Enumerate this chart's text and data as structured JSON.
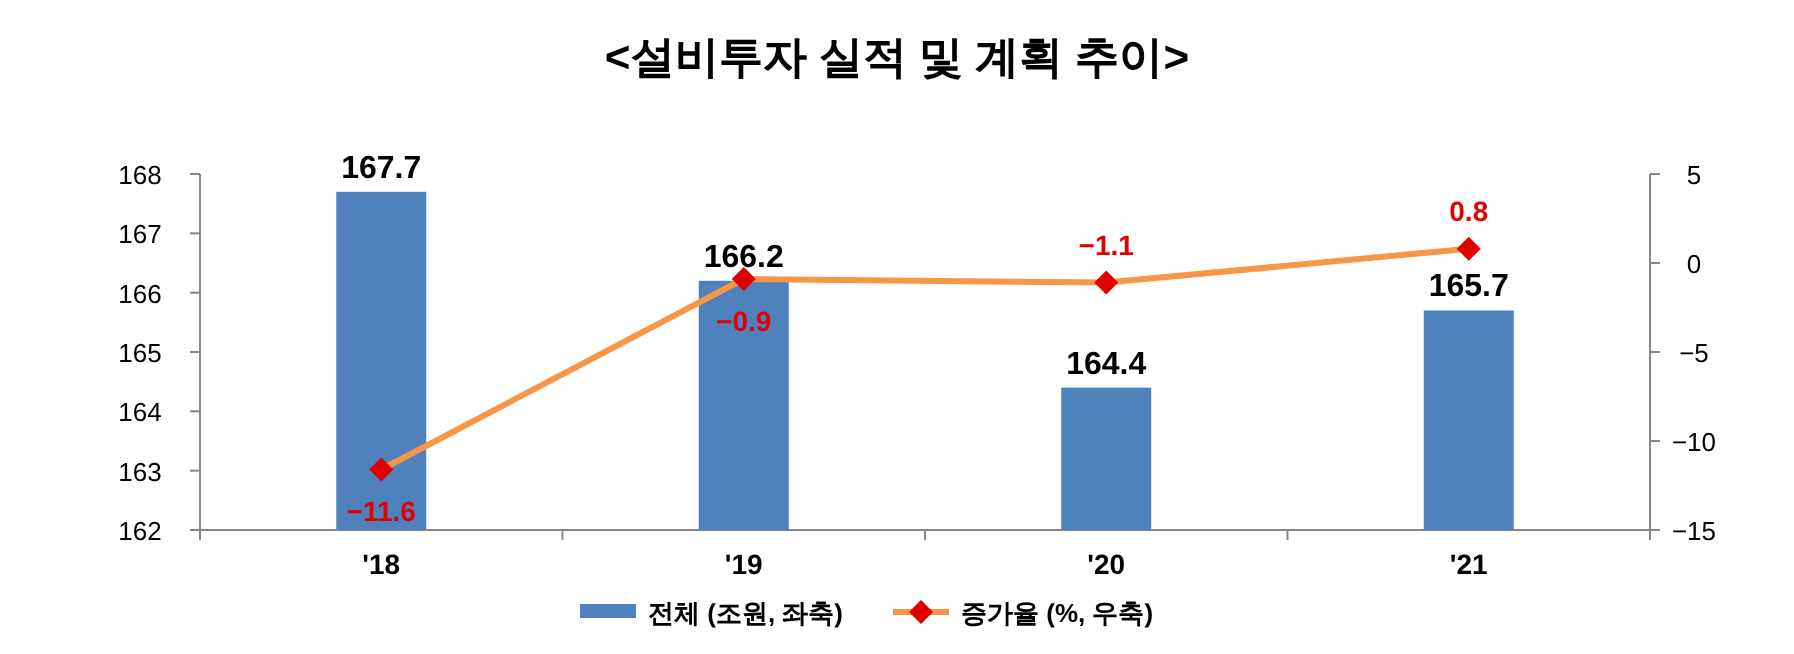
{
  "chart_data": {
    "type": "bar",
    "title": "<설비투자 실적 및 계획 추이>",
    "categories": [
      "'18",
      "'19",
      "'20",
      "'21"
    ],
    "series": [
      {
        "name": "전체 (조원, 좌축)",
        "color": "#4f81bd",
        "values": [
          167.7,
          166.2,
          164.4,
          165.7
        ]
      },
      {
        "name": "증가율 (%, 우축)",
        "type": "line",
        "axis": "y2",
        "color": "#f79646",
        "colors": [
          "#e00000",
          "#e00000",
          "#e00000",
          "#e00000"
        ],
        "marker": "diamond",
        "values": [
          -11.6,
          -0.9,
          -1.1,
          0.8
        ]
      }
    ],
    "ylim": [
      162,
      168
    ],
    "yticks": [
      162,
      163,
      164,
      165,
      166,
      167,
      168
    ],
    "y2lim": [
      -15,
      5
    ],
    "y2ticks": [
      -15,
      -10,
      -5,
      0,
      5
    ],
    "data_labels": true,
    "legend": "bottom",
    "grid": false
  }
}
